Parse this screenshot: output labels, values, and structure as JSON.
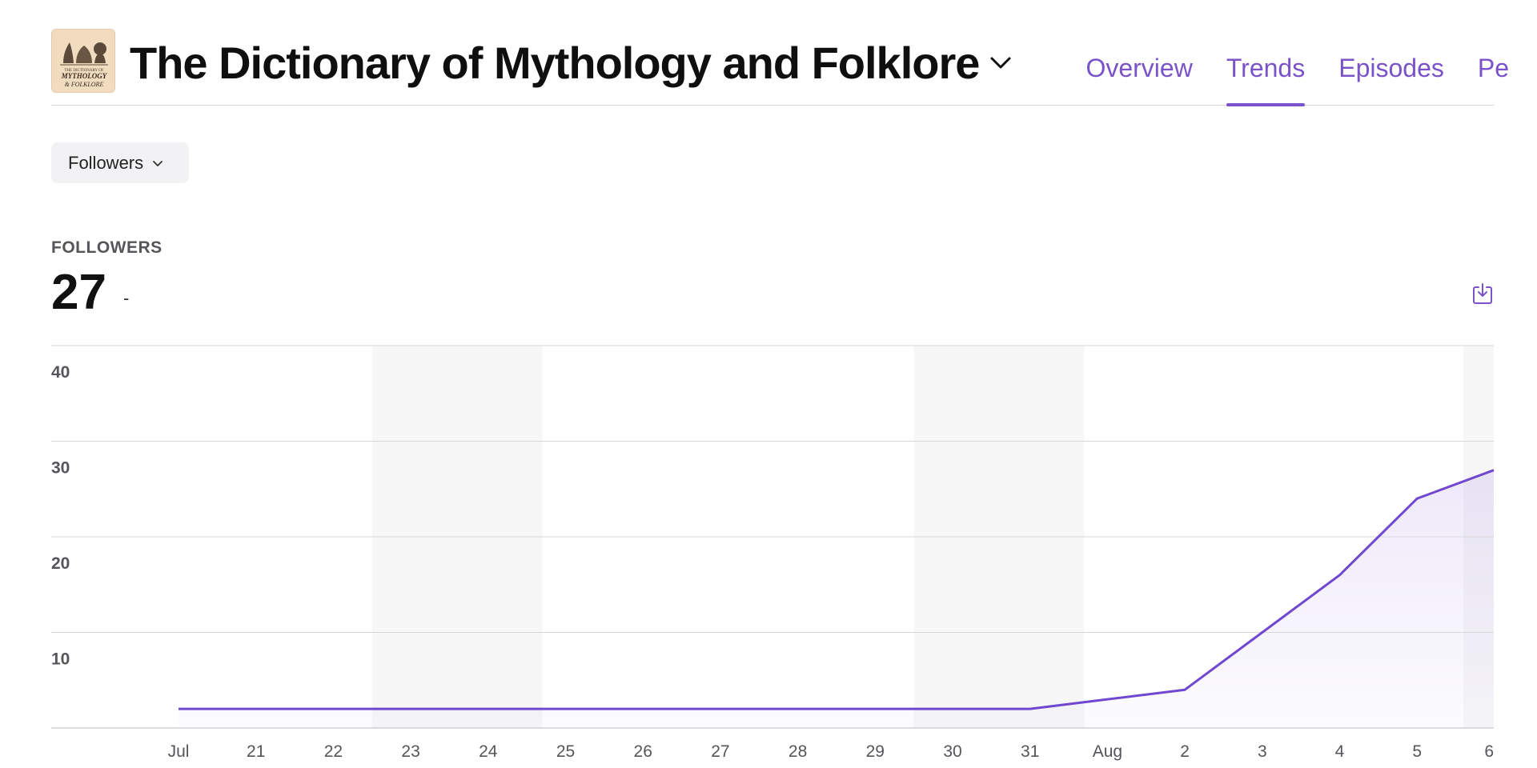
{
  "header": {
    "logo_icon": "podcast-artwork-logo",
    "logo_text": [
      "THE DICTIONARY OF",
      "MYTHOLOGY",
      "& FOLKLORE"
    ],
    "title": "The Dictionary of Mythology and Folklore",
    "tabs": [
      {
        "label": "Overview",
        "active": false
      },
      {
        "label": "Trends",
        "active": true
      },
      {
        "label": "Episodes",
        "active": false
      },
      {
        "label": "Pe",
        "active": false
      }
    ]
  },
  "metric_selector": {
    "label": "Followers",
    "icon": "chevron-down-icon"
  },
  "kpi": {
    "label": "FOLLOWERS",
    "value": "27",
    "delta": "-"
  },
  "download_icon": "download-icon",
  "colors": {
    "accent": "#7a52c9",
    "line": "#7048d0",
    "weekend_band": "#f7f7f8"
  },
  "chart_data": {
    "type": "area",
    "x": [
      "Jul 20",
      "21",
      "22",
      "23",
      "24",
      "25",
      "26",
      "27",
      "28",
      "29",
      "30",
      "31",
      "Aug 1",
      "2",
      "3",
      "4",
      "5",
      "6"
    ],
    "x_tick_labels": [
      "Jul",
      "21",
      "22",
      "23",
      "24",
      "25",
      "26",
      "27",
      "28",
      "29",
      "30",
      "31",
      "Aug",
      "2",
      "3",
      "4",
      "5",
      "6"
    ],
    "series": [
      {
        "values": [
          2,
          2,
          2,
          2,
          2,
          2,
          2,
          2,
          2,
          2,
          2,
          2,
          3,
          4,
          10,
          16,
          24,
          27
        ]
      }
    ],
    "ylim": [
      0,
      40
    ],
    "yticks": [
      10,
      20,
      30,
      40
    ],
    "grid": true,
    "shaded_bands": [
      [
        2.5,
        4.7
      ],
      [
        9.5,
        11.7
      ],
      [
        16.6,
        17.2
      ]
    ]
  }
}
